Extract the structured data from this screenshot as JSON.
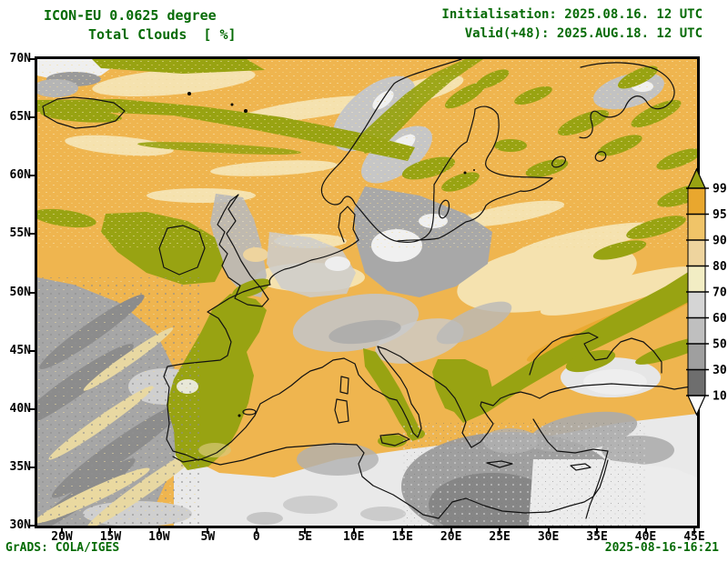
{
  "header": {
    "model_title": "ICON-EU 0.0625 degree",
    "product_title": "Total Clouds  [ %]",
    "init_line": "Initialisation: 2025.08.16. 12 UTC",
    "valid_line": "Valid(+48): 2025.AUG.18. 12 UTC"
  },
  "footer": {
    "brand": "GrADS: COLA/IGES",
    "timestamp": "2025-08-16-16:21"
  },
  "axes": {
    "lat_labels": [
      "70N",
      "65N",
      "60N",
      "55N",
      "50N",
      "45N",
      "40N",
      "35N",
      "30N"
    ],
    "lon_labels": [
      "20W",
      "15W",
      "10W",
      "5W",
      "0",
      "5E",
      "10E",
      "15E",
      "20E",
      "25E",
      "30E",
      "35E",
      "40E",
      "45E"
    ]
  },
  "legend": {
    "unit": "%",
    "levels": [
      "99.5",
      "95",
      "90",
      "80",
      "70",
      "60",
      "50",
      "30",
      "10"
    ],
    "colors_top_to_bottom": [
      "#98a312",
      "#e9a72e",
      "#f0c468",
      "#eed49e",
      "#f2edc4",
      "#d5d5d5",
      "#bfbfbf",
      "#9f9f9f",
      "#6e6e6e",
      "#fdfdfd"
    ]
  },
  "colors": {
    "annotation_text": "#066b06",
    "axis_text": "#000000",
    "overcast_olive": "#98a312",
    "cloud_orange": "#efb54f",
    "clear_gray": "#ececec"
  }
}
